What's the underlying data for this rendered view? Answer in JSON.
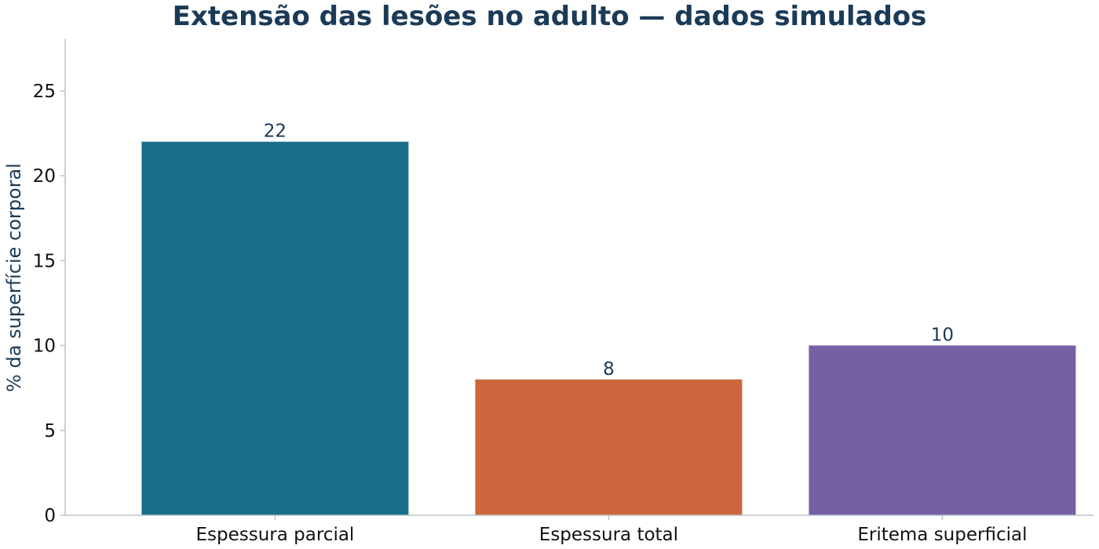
{
  "chart_data": {
    "type": "bar",
    "title": "Extensão das lesões no adulto — dados simulados",
    "xlabel": "",
    "ylabel": "% da superfície corporal",
    "categories": [
      "Espessura parcial",
      "Espessura total",
      "Eritema superficial"
    ],
    "values": [
      22,
      8,
      10
    ],
    "data_labels": [
      "22",
      "8",
      "10"
    ],
    "bar_colors": [
      "#1a6e8a",
      "#cc673d",
      "#7560a5"
    ],
    "ylim": [
      0,
      28
    ],
    "yticks": [
      0,
      5,
      10,
      15,
      20,
      25
    ],
    "grid": false,
    "legend": "none"
  }
}
